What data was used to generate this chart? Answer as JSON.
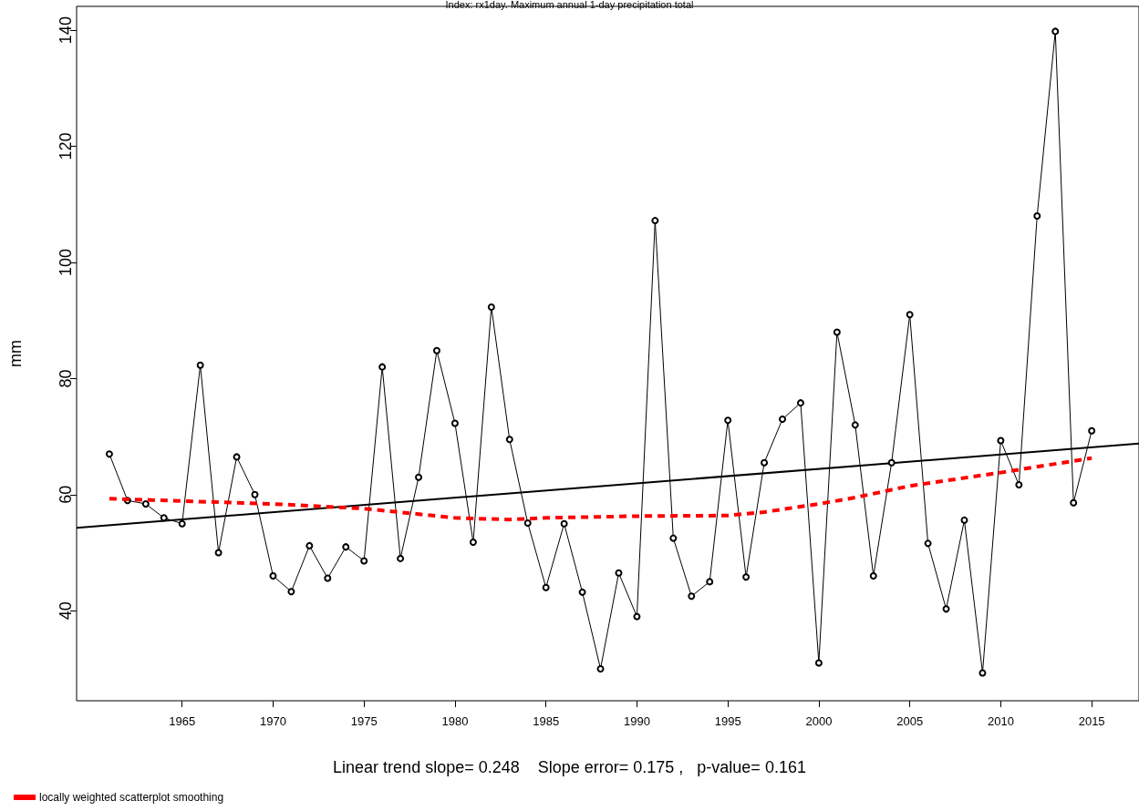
{
  "chart_data": {
    "type": "line",
    "title": "Index: rx1day. Maximum annual 1-day precipitation total",
    "ylabel": "mm",
    "annotations": [
      "Linear trend slope= 0.248    Slope error= 0.175 ,   p-value= 0.161"
    ],
    "x": [
      1961,
      1962,
      1963,
      1964,
      1965,
      1966,
      1967,
      1968,
      1969,
      1970,
      1971,
      1972,
      1973,
      1974,
      1975,
      1976,
      1977,
      1978,
      1979,
      1980,
      1981,
      1982,
      1983,
      1984,
      1985,
      1986,
      1987,
      1988,
      1989,
      1990,
      1991,
      1992,
      1993,
      1994,
      1995,
      1996,
      1997,
      1998,
      1999,
      2000,
      2001,
      2002,
      2003,
      2004,
      2005,
      2006,
      2007,
      2008,
      2009,
      2010,
      2011,
      2012,
      2013,
      2014,
      2015
    ],
    "series": [
      {
        "color": "#000000",
        "marker": "circle",
        "line_style": "solid",
        "values": [
          67,
          59,
          58.4,
          56,
          55,
          82.3,
          50,
          66.5,
          60,
          46,
          43.3,
          51.2,
          45.6,
          51,
          48.6,
          82,
          49,
          63,
          84.8,
          72.3,
          51.8,
          92.3,
          69.5,
          55.1,
          44,
          55,
          43.2,
          30,
          46.5,
          39,
          107.2,
          52.5,
          42.5,
          45,
          72.8,
          45.8,
          65.5,
          73,
          75.8,
          31,
          88,
          72,
          46,
          65.5,
          91,
          51.6,
          40.3,
          55.6,
          29.3,
          69.3,
          61.7,
          108,
          139.8,
          58.6,
          71
        ]
      },
      {
        "type": "line",
        "color": "#000000",
        "marker": "none",
        "line_style": "solid",
        "x": [
          1959.2,
          2017.6
        ],
        "values": [
          54.3,
          68.8
        ]
      },
      {
        "type": "line",
        "name": "locally weighted scatterplot smoothing",
        "color": "#ff0000",
        "marker": "none",
        "line_style": "dashed",
        "x": [
          1961,
          1965,
          1970,
          1975,
          1980,
          1983,
          1985,
          1990,
          1995,
          1997,
          2000,
          2002,
          2005,
          2010,
          2015
        ],
        "values": [
          59.3,
          58.9,
          58.4,
          57.6,
          56,
          55.7,
          56,
          56.3,
          56.4,
          57,
          58.4,
          59.5,
          61.5,
          63.8,
          66.3
        ]
      }
    ],
    "xlim": [
      1959.2,
      2017.6
    ],
    "xticks": [
      1965,
      1970,
      1975,
      1980,
      1985,
      1990,
      1995,
      2000,
      2005,
      2010,
      2015
    ],
    "ylim": [
      24.5,
      144.1
    ],
    "yticks": [
      40,
      60,
      80,
      100,
      120,
      140
    ],
    "grid": false,
    "legend": "bottom left"
  }
}
